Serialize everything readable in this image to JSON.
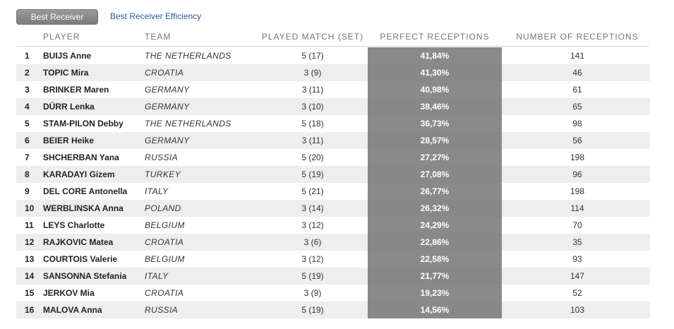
{
  "tabs": {
    "active": "Best Receiver",
    "other": "Best Receiver Efficiency"
  },
  "columns": {
    "player": "PLAYER",
    "team": "TEAM",
    "played": "PLAYED MATCH (SET)",
    "perfect": "PERFECT RECEPTIONS",
    "count": "NUMBER OF RECEPTIONS"
  },
  "rows": [
    {
      "rank": "1",
      "player": "BUIJS Anne",
      "team": "THE NETHERLANDS",
      "played": "5 (17)",
      "perfect": "41,84%",
      "count": "141"
    },
    {
      "rank": "2",
      "player": "TOPIC Mira",
      "team": "CROATIA",
      "played": "3 (9)",
      "perfect": "41,30%",
      "count": "46"
    },
    {
      "rank": "3",
      "player": "BRINKER Maren",
      "team": "GERMANY",
      "played": "3 (11)",
      "perfect": "40,98%",
      "count": "61"
    },
    {
      "rank": "4",
      "player": "DÜRR Lenka",
      "team": "GERMANY",
      "played": "3 (10)",
      "perfect": "38,46%",
      "count": "65"
    },
    {
      "rank": "5",
      "player": "STAM-PILON Debby",
      "team": "THE NETHERLANDS",
      "played": "5 (18)",
      "perfect": "36,73%",
      "count": "98"
    },
    {
      "rank": "6",
      "player": "BEIER Heike",
      "team": "GERMANY",
      "played": "3 (11)",
      "perfect": "28,57%",
      "count": "56"
    },
    {
      "rank": "7",
      "player": "SHCHERBAN Yana",
      "team": "RUSSIA",
      "played": "5 (20)",
      "perfect": "27,27%",
      "count": "198"
    },
    {
      "rank": "8",
      "player": "KARADAYI Gizem",
      "team": "TURKEY",
      "played": "5 (19)",
      "perfect": "27,08%",
      "count": "96"
    },
    {
      "rank": "9",
      "player": "DEL CORE Antonella",
      "team": "ITALY",
      "played": "5 (21)",
      "perfect": "26,77%",
      "count": "198"
    },
    {
      "rank": "10",
      "player": "WERBLINSKA Anna",
      "team": "POLAND",
      "played": "3 (14)",
      "perfect": "26,32%",
      "count": "114"
    },
    {
      "rank": "11",
      "player": "LEYS Charlotte",
      "team": "BELGIUM",
      "played": "3 (12)",
      "perfect": "24,29%",
      "count": "70"
    },
    {
      "rank": "12",
      "player": "RAJKOVIC Matea",
      "team": "CROATIA",
      "played": "3 (6)",
      "perfect": "22,86%",
      "count": "35"
    },
    {
      "rank": "13",
      "player": "COURTOIS Valerie",
      "team": "BELGIUM",
      "played": "3 (12)",
      "perfect": "22,58%",
      "count": "93"
    },
    {
      "rank": "14",
      "player": "SANSONNA Stefania",
      "team": "ITALY",
      "played": "5 (19)",
      "perfect": "21,77%",
      "count": "147"
    },
    {
      "rank": "15",
      "player": "JERKOV Mia",
      "team": "CROATIA",
      "played": "3 (9)",
      "perfect": "19,23%",
      "count": "52"
    },
    {
      "rank": "16",
      "player": "MALOVA Anna",
      "team": "RUSSIA",
      "played": "5 (19)",
      "perfect": "14,56%",
      "count": "103"
    }
  ]
}
